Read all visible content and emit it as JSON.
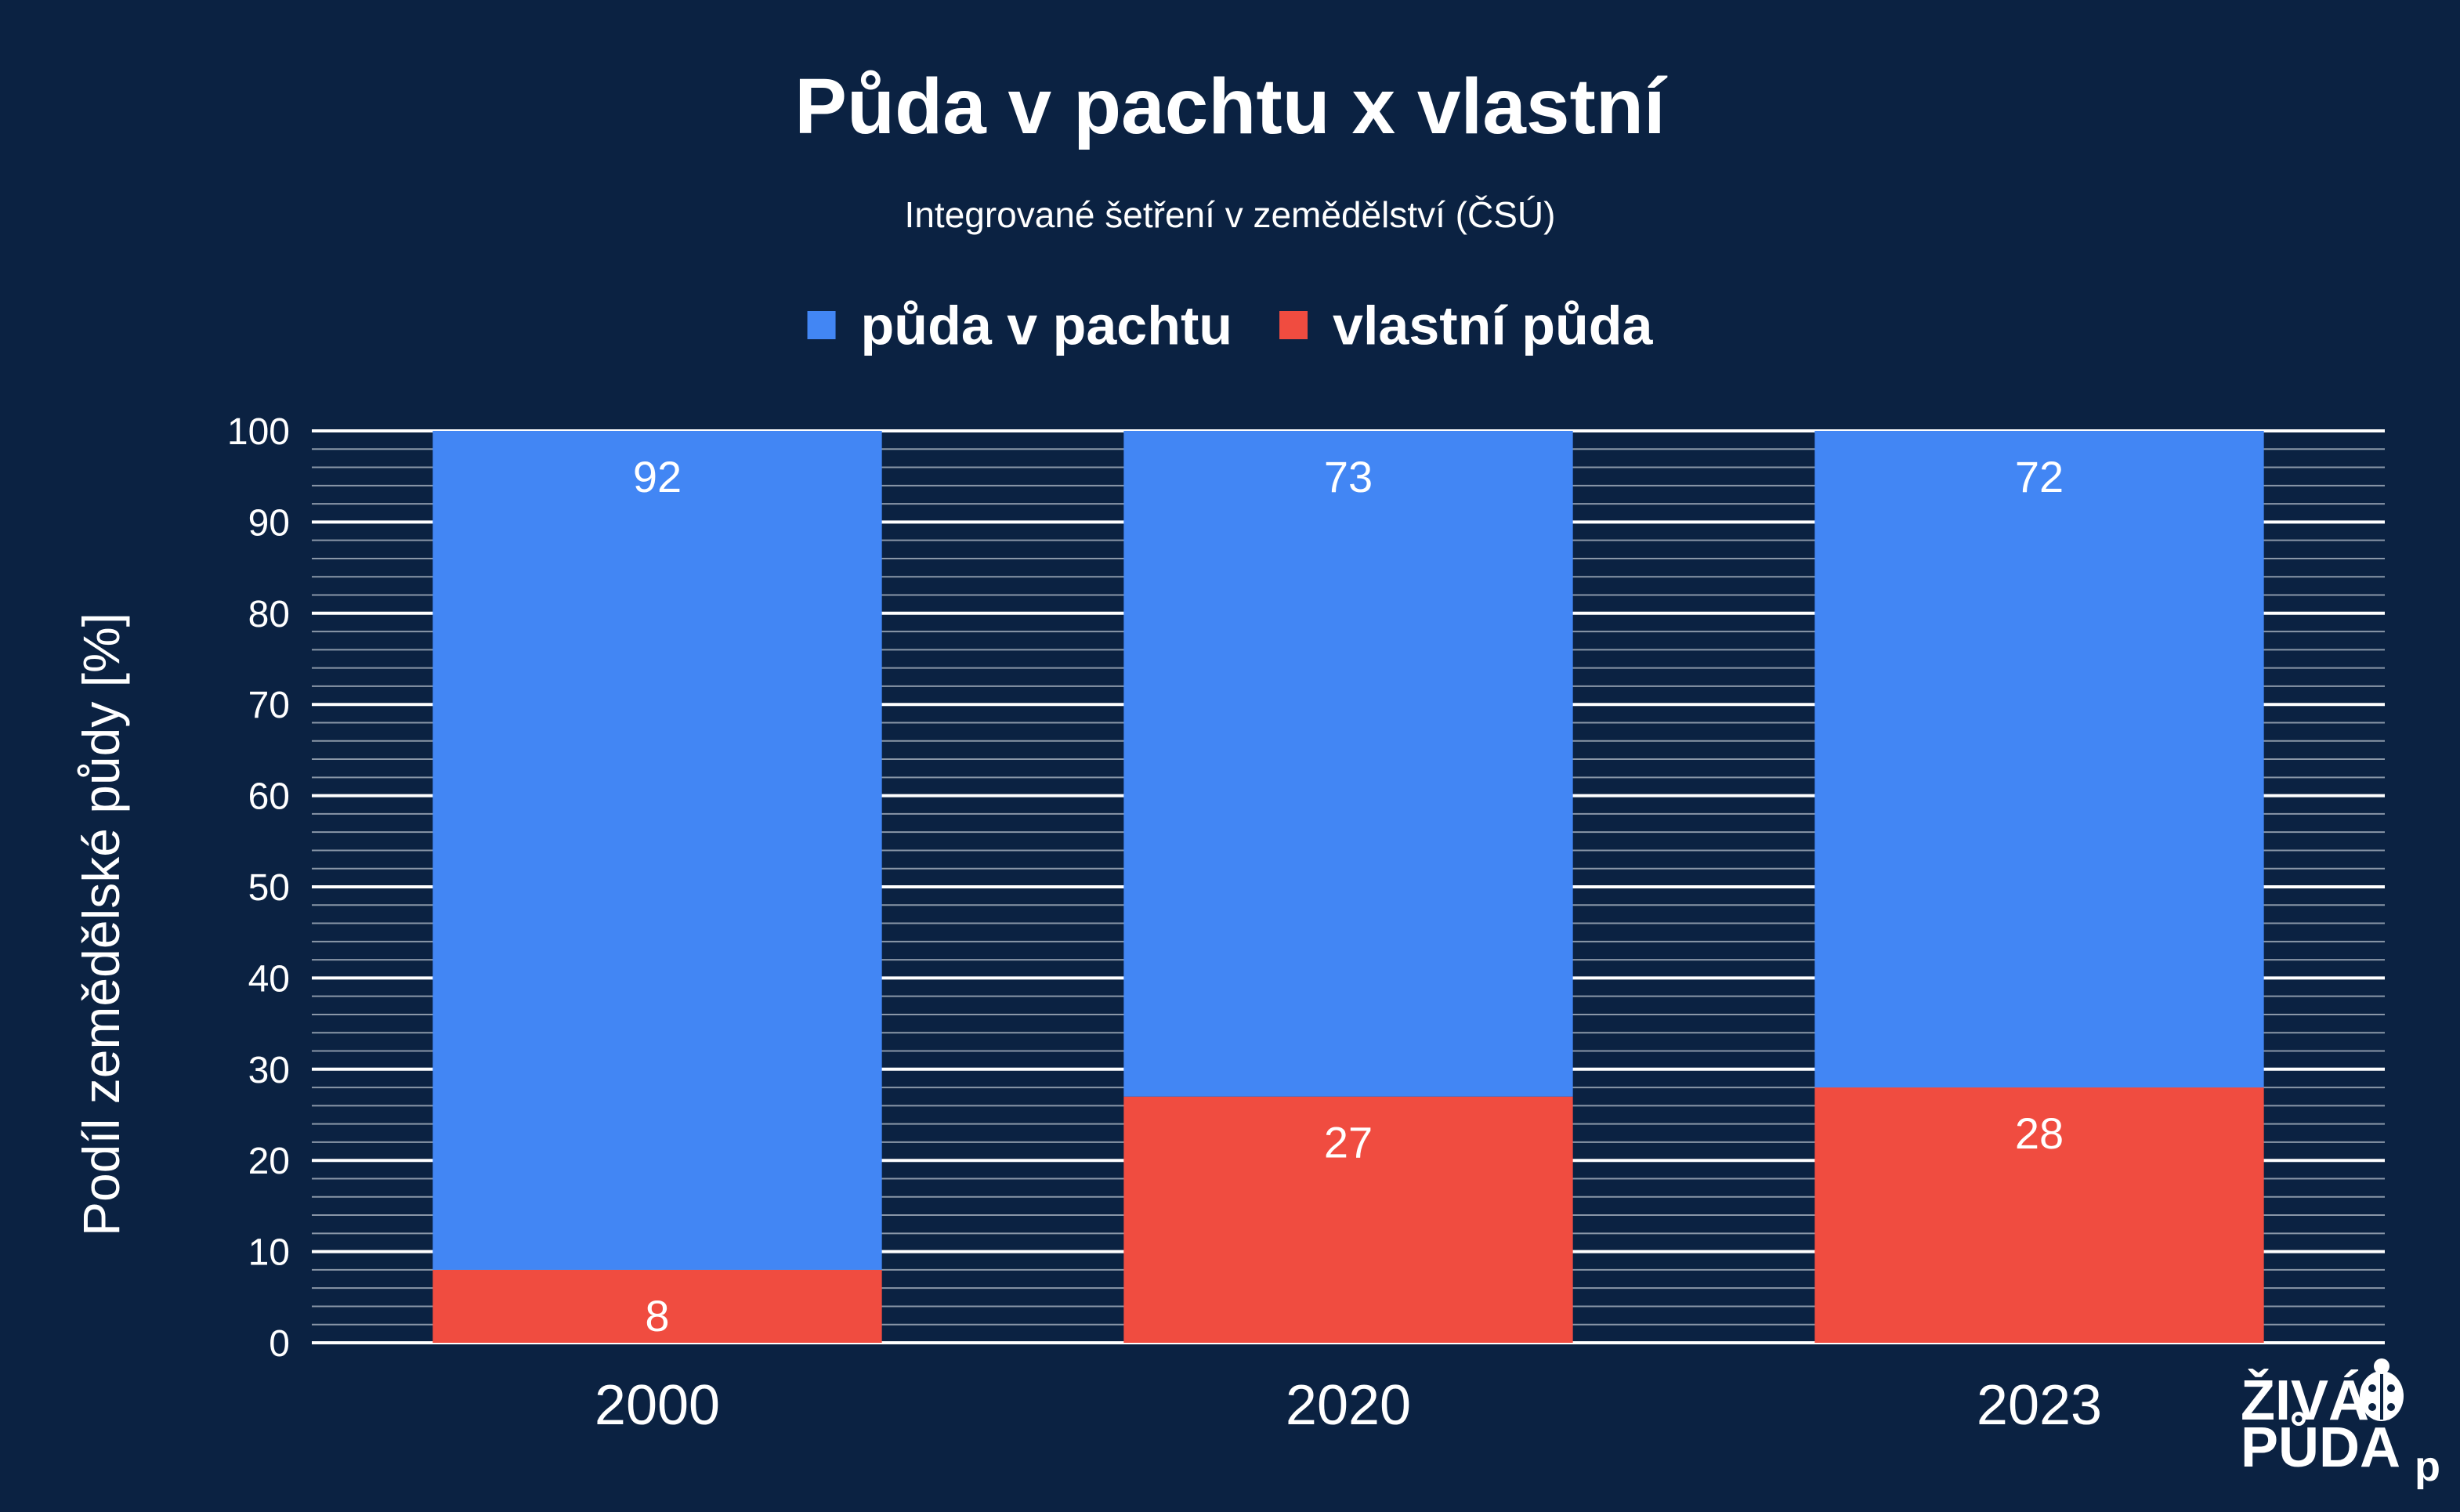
{
  "chart_data": {
    "type": "bar",
    "stacked": true,
    "title": "Půda v pachtu x vlastní",
    "subtitle": "Integrované šetření v zemědělství (ČSÚ)",
    "xlabel": "",
    "ylabel": "Podíl zemědělské půdy [%]",
    "categories": [
      "2000",
      "2020",
      "2023"
    ],
    "series": [
      {
        "name": "vlastní půda",
        "values": [
          8,
          27,
          28
        ],
        "color": "#f04c40"
      },
      {
        "name": "půda v pachtu",
        "values": [
          92,
          73,
          72
        ],
        "color": "#4286f4"
      }
    ],
    "legend_order": [
      "půda v pachtu",
      "vlastní půda"
    ],
    "legend_position": "top",
    "ylim": [
      0,
      100
    ],
    "yticks": [
      "0",
      "10",
      "20",
      "30",
      "40",
      "50",
      "60",
      "70",
      "80",
      "90",
      "100"
    ],
    "grid": true,
    "data_labels": true
  },
  "logo": {
    "line1": "ŽIVÁ",
    "line2": "PŮDA",
    "mark": "ladybug-icon",
    "suffix": "p"
  },
  "colors": {
    "background": "#0b2242",
    "grid_major": "#ffffff",
    "grid_minor": "#8a97a8"
  }
}
